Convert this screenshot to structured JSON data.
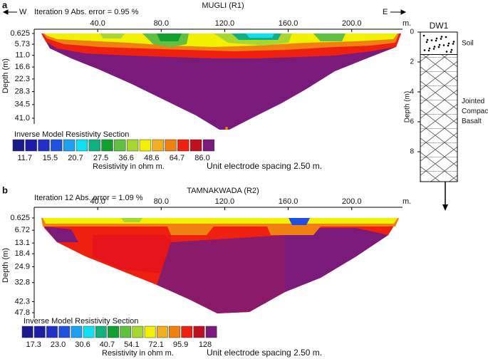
{
  "chart_data": [
    {
      "type": "section",
      "panel_label": "a",
      "title": "MUGLI (R1)",
      "subtitle": "Iteration 9 Abs. error = 0.95 %",
      "directions": [
        "W",
        "E"
      ],
      "xlim": [
        0,
        232
      ],
      "xticks": [
        {
          "value": 40,
          "label": "40.0"
        },
        {
          "value": 80,
          "label": "80.0"
        },
        {
          "value": 120,
          "label": "120.0"
        },
        {
          "value": 160,
          "label": "160.0"
        },
        {
          "value": 200,
          "label": "200.0"
        }
      ],
      "x_unit": "m.",
      "ylabel": "Depth (m)",
      "ylim": [
        0.625,
        41
      ],
      "yticks": [
        0.625,
        5.73,
        {
          "value": 11,
          "label": "11.0"
        },
        16.6,
        22.3,
        28.3,
        34.5,
        {
          "value": 41,
          "label": "41.0"
        }
      ],
      "colorbar": {
        "title": "Inverse Model Resistivity Section",
        "unit_label": "Resistivity in ohm m.",
        "colors": [
          "#1a1a8c",
          "#1c1ca8",
          "#2030c8",
          "#2050e0",
          "#20a0f0",
          "#10e0f0",
          "#10b080",
          "#10a030",
          "#60c040",
          "#a8d830",
          "#f0f000",
          "#f0b020",
          "#f08010",
          "#f02010",
          "#c01020",
          "#7a1a7a"
        ],
        "ticks": [
          11.7,
          15.5,
          20.7,
          27.5,
          36.6,
          48.6,
          64.7,
          {
            "value": 86,
            "label": "86.0"
          }
        ]
      },
      "note": "Unit electrode spacing 2.50 m."
    },
    {
      "type": "section",
      "panel_label": "b",
      "title": "TAMNAKWADA (R2)",
      "subtitle": "Iteration 12 Abs. error = 1.09 %",
      "xlim": [
        0,
        232
      ],
      "xticks": [
        {
          "value": 40,
          "label": "40.0"
        },
        {
          "value": 80,
          "label": "80.0"
        },
        {
          "value": 120,
          "label": "120.0"
        },
        {
          "value": 160,
          "label": "160.0"
        },
        {
          "value": 200,
          "label": "200.0"
        }
      ],
      "x_unit": "m.",
      "ylabel": "Depth (m)",
      "ylim": [
        0.625,
        47.8
      ],
      "yticks": [
        0.625,
        6.72,
        13.1,
        18.4,
        24.9,
        32.8,
        42.3,
        47.8
      ],
      "colorbar": {
        "title": "Inverse Model Resistivity Section",
        "unit_label": "Resistivity in ohm m.",
        "colors": [
          "#1a1a8c",
          "#1c1ca8",
          "#2030c8",
          "#2050e0",
          "#20a0f0",
          "#10e0f0",
          "#10b080",
          "#10a030",
          "#60c040",
          "#a8d830",
          "#f0f000",
          "#f0b020",
          "#f08010",
          "#f02010",
          "#c01020",
          "#7a1a7a"
        ],
        "ticks": [
          17.3,
          {
            "value": 23,
            "label": "23.0"
          },
          30.6,
          40.7,
          54.1,
          72.1,
          95.9,
          128
        ]
      },
      "note": "Unit electrode spacing 2.50 m."
    }
  ],
  "borehole": {
    "title": "DW1",
    "ylabel": "Depth (m)",
    "ylim": [
      0,
      10
    ],
    "yticks": [
      0,
      2,
      4,
      6,
      8
    ],
    "layers": [
      {
        "name_lines": [
          "Soil"
        ],
        "top": 0,
        "bottom": 1.5
      },
      {
        "name_lines": [
          "Jointed",
          "Compact",
          "Basalt"
        ],
        "top": 1.5,
        "bottom": 10
      }
    ]
  }
}
